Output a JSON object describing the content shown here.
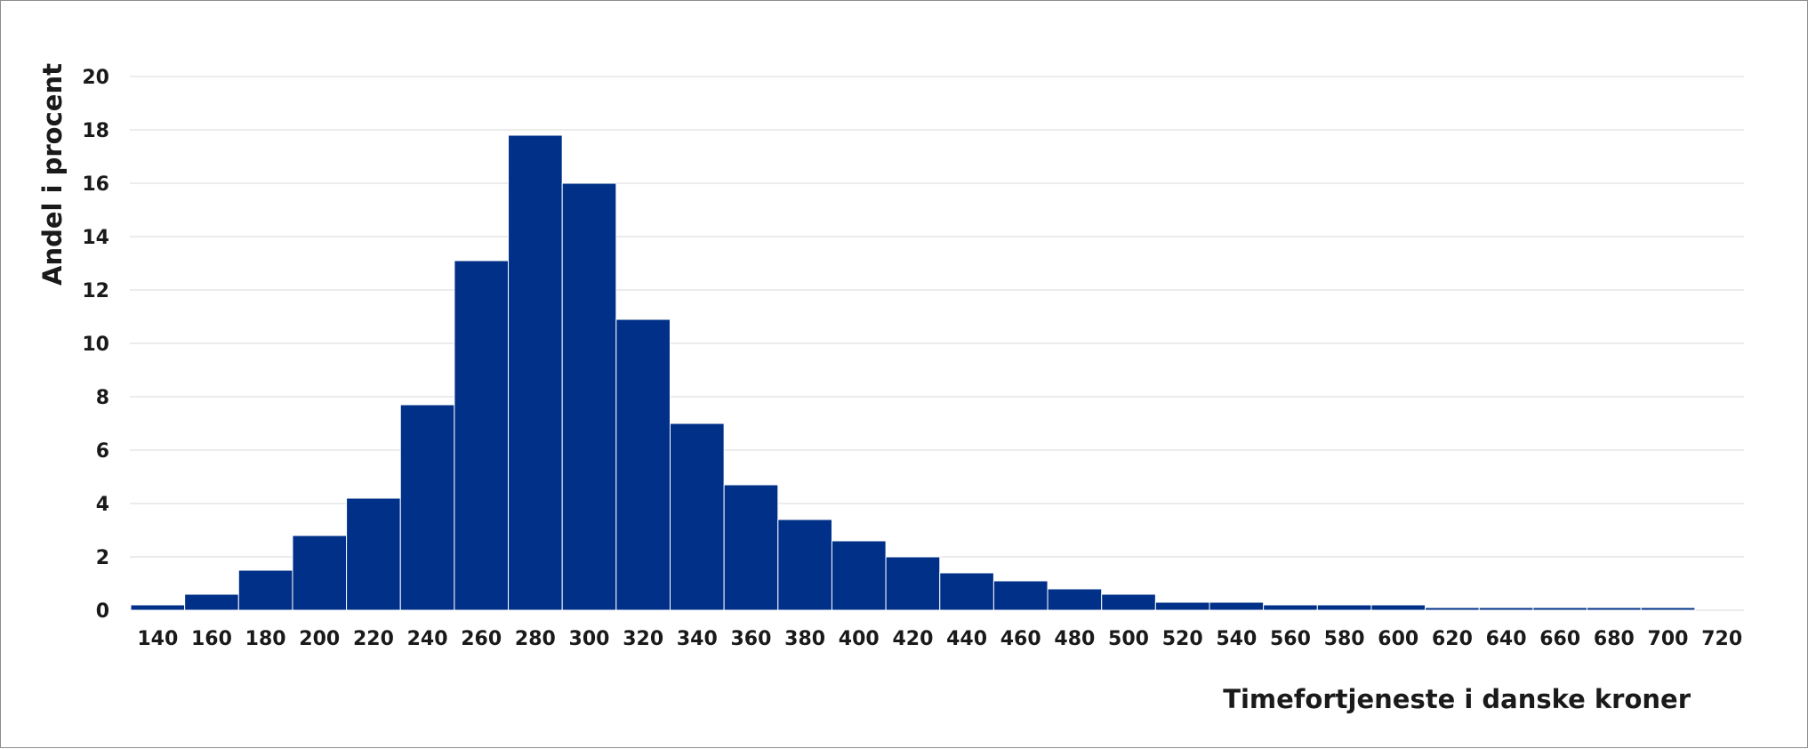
{
  "chart_data": {
    "type": "bar",
    "title": "",
    "xlabel": "Timefortjeneste i danske kroner",
    "ylabel": "Andel i procent",
    "ylim": [
      0,
      20
    ],
    "yticks": [
      "0",
      "2",
      "4",
      "6",
      "8",
      "10",
      "12",
      "14",
      "16",
      "18",
      "20"
    ],
    "xticks": [
      "140",
      "160",
      "180",
      "200",
      "220",
      "240",
      "260",
      "280",
      "300",
      "320",
      "340",
      "360",
      "380",
      "400",
      "420",
      "440",
      "460",
      "480",
      "500",
      "520",
      "540",
      "560",
      "580",
      "600",
      "620",
      "640",
      "660",
      "680",
      "700",
      "720"
    ],
    "categories": [
      "140",
      "160",
      "180",
      "200",
      "220",
      "240",
      "260",
      "280",
      "300",
      "320",
      "340",
      "360",
      "380",
      "400",
      "420",
      "440",
      "460",
      "480",
      "500",
      "520",
      "540",
      "560",
      "580",
      "600",
      "620",
      "640",
      "660",
      "680",
      "700"
    ],
    "values": [
      0.2,
      0.6,
      1.5,
      2.8,
      4.2,
      7.7,
      13.1,
      17.8,
      16.0,
      10.9,
      7.0,
      4.7,
      3.4,
      2.6,
      2.0,
      1.4,
      1.1,
      0.8,
      0.6,
      0.3,
      0.3,
      0.2,
      0.2,
      0.2,
      0.1,
      0.1,
      0.1,
      0.1,
      0.1
    ],
    "grid": true,
    "bar_color": "#003087",
    "grid_color": "#d9d9d9"
  }
}
